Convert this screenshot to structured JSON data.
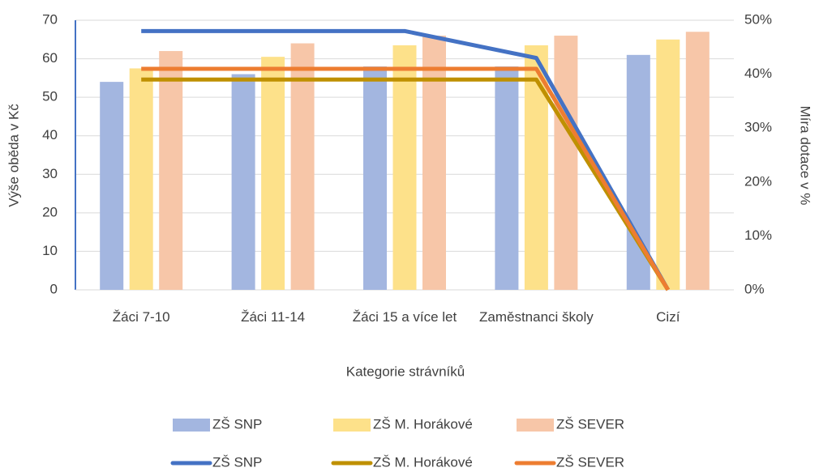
{
  "chart_data": {
    "type": "combo",
    "categories": [
      "Žáci 7-10",
      "Žáci 11-14",
      "Žáci 15 a více let",
      "Zaměstnanci školy",
      "Cizí"
    ],
    "xlabel": "Kategorie strávníků",
    "ylabel": "Výše oběda v Kč",
    "y2label": "Míra dotace v %",
    "ylim": [
      0,
      70
    ],
    "yticks": [
      0,
      10,
      20,
      30,
      40,
      50,
      60,
      70
    ],
    "y2lim": [
      0,
      50
    ],
    "y2ticks": [
      {
        "value": 0,
        "label": "0%"
      },
      {
        "value": 10,
        "label": "10%"
      },
      {
        "value": 20,
        "label": "20%"
      },
      {
        "value": 30,
        "label": "30%"
      },
      {
        "value": 40,
        "label": "40%"
      },
      {
        "value": 50,
        "label": "50%"
      }
    ],
    "grid": true,
    "series": [
      {
        "name": "ZŠ SNP",
        "type": "bar",
        "color": "#a3b6e0",
        "values": [
          54,
          56,
          58,
          58,
          61
        ]
      },
      {
        "name": "ZŠ M. Horákové",
        "type": "bar",
        "color": "#fde18a",
        "values": [
          57.5,
          60.5,
          63.5,
          63.5,
          65
        ]
      },
      {
        "name": "ZŠ SEVER",
        "type": "bar",
        "color": "#f7c6a8",
        "values": [
          62,
          64,
          66,
          66,
          67
        ]
      },
      {
        "name": "ZŠ SNP",
        "type": "line",
        "axis": "y2",
        "color": "#4472c4",
        "values": [
          48,
          48,
          48,
          43,
          0
        ]
      },
      {
        "name": "ZŠ M. Horákové",
        "type": "line",
        "axis": "y2",
        "color": "#bf9000",
        "values": [
          39,
          39,
          39,
          39,
          0
        ]
      },
      {
        "name": "ZŠ SEVER",
        "type": "line",
        "axis": "y2",
        "color": "#ed7d31",
        "values": [
          41,
          41,
          41,
          41,
          0
        ]
      }
    ]
  }
}
